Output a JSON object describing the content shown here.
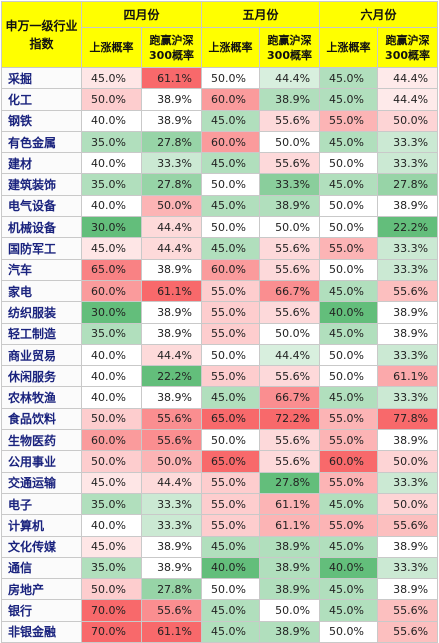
{
  "header": {
    "corner": "申万一级行业指数",
    "months": [
      "四月份",
      "五月份",
      "六月份"
    ],
    "col_rise": "上涨概率",
    "col_beat": "跑赢沪深300概率"
  },
  "rows": [
    {
      "name": "采掘",
      "v": [
        "45.0%",
        "61.1%",
        "50.0%",
        "44.4%",
        "45.0%",
        "44.4%"
      ]
    },
    {
      "name": "化工",
      "v": [
        "50.0%",
        "38.9%",
        "60.0%",
        "38.9%",
        "45.0%",
        "44.4%"
      ]
    },
    {
      "name": "钢铁",
      "v": [
        "40.0%",
        "38.9%",
        "45.0%",
        "55.6%",
        "55.0%",
        "50.0%"
      ]
    },
    {
      "name": "有色金属",
      "v": [
        "35.0%",
        "27.8%",
        "60.0%",
        "50.0%",
        "45.0%",
        "33.3%"
      ]
    },
    {
      "name": "建材",
      "v": [
        "40.0%",
        "33.3%",
        "45.0%",
        "55.6%",
        "50.0%",
        "33.3%"
      ]
    },
    {
      "name": "建筑装饰",
      "v": [
        "35.0%",
        "27.8%",
        "50.0%",
        "33.3%",
        "45.0%",
        "27.8%"
      ]
    },
    {
      "name": "电气设备",
      "v": [
        "40.0%",
        "50.0%",
        "45.0%",
        "38.9%",
        "50.0%",
        "38.9%"
      ]
    },
    {
      "name": "机械设备",
      "v": [
        "30.0%",
        "44.4%",
        "50.0%",
        "50.0%",
        "50.0%",
        "22.2%"
      ]
    },
    {
      "name": "国防军工",
      "v": [
        "45.0%",
        "44.4%",
        "45.0%",
        "55.6%",
        "55.0%",
        "33.3%"
      ]
    },
    {
      "name": "汽车",
      "v": [
        "65.0%",
        "38.9%",
        "60.0%",
        "55.6%",
        "50.0%",
        "33.3%"
      ]
    },
    {
      "name": "家电",
      "v": [
        "60.0%",
        "61.1%",
        "55.0%",
        "66.7%",
        "45.0%",
        "55.6%"
      ]
    },
    {
      "name": "纺织服装",
      "v": [
        "30.0%",
        "38.9%",
        "55.0%",
        "55.6%",
        "40.0%",
        "38.9%"
      ]
    },
    {
      "name": "轻工制造",
      "v": [
        "35.0%",
        "38.9%",
        "55.0%",
        "50.0%",
        "45.0%",
        "38.9%"
      ]
    },
    {
      "name": "商业贸易",
      "v": [
        "40.0%",
        "44.4%",
        "50.0%",
        "44.4%",
        "50.0%",
        "33.3%"
      ]
    },
    {
      "name": "休闲服务",
      "v": [
        "40.0%",
        "22.2%",
        "55.0%",
        "55.6%",
        "50.0%",
        "61.1%"
      ]
    },
    {
      "name": "农林牧渔",
      "v": [
        "40.0%",
        "38.9%",
        "45.0%",
        "66.7%",
        "45.0%",
        "33.3%"
      ]
    },
    {
      "name": "食品饮料",
      "v": [
        "50.0%",
        "55.6%",
        "65.0%",
        "72.2%",
        "55.0%",
        "77.8%"
      ]
    },
    {
      "name": "生物医药",
      "v": [
        "60.0%",
        "55.6%",
        "50.0%",
        "55.6%",
        "55.0%",
        "38.9%"
      ]
    },
    {
      "name": "公用事业",
      "v": [
        "50.0%",
        "50.0%",
        "65.0%",
        "55.6%",
        "60.0%",
        "50.0%"
      ]
    },
    {
      "name": "交通运输",
      "v": [
        "45.0%",
        "44.4%",
        "55.0%",
        "27.8%",
        "55.0%",
        "33.3%"
      ]
    },
    {
      "name": "电子",
      "v": [
        "35.0%",
        "33.3%",
        "55.0%",
        "61.1%",
        "45.0%",
        "50.0%"
      ]
    },
    {
      "name": "计算机",
      "v": [
        "40.0%",
        "33.3%",
        "55.0%",
        "61.1%",
        "55.0%",
        "55.6%"
      ]
    },
    {
      "name": "文化传媒",
      "v": [
        "45.0%",
        "38.9%",
        "45.0%",
        "38.9%",
        "45.0%",
        "38.9%"
      ]
    },
    {
      "name": "通信",
      "v": [
        "35.0%",
        "38.9%",
        "40.0%",
        "38.9%",
        "40.0%",
        "33.3%"
      ]
    },
    {
      "name": "房地产",
      "v": [
        "50.0%",
        "27.8%",
        "50.0%",
        "38.9%",
        "45.0%",
        "38.9%"
      ]
    },
    {
      "name": "银行",
      "v": [
        "70.0%",
        "55.6%",
        "45.0%",
        "50.0%",
        "45.0%",
        "55.6%"
      ]
    },
    {
      "name": "非银金融",
      "v": [
        "70.0%",
        "61.1%",
        "45.0%",
        "38.9%",
        "50.0%",
        "55.6%"
      ]
    }
  ],
  "colors": {
    "header_bg": "#ffff00",
    "low_green": "#63be7b",
    "mid": "#ffffff",
    "high_red": "#f8696b",
    "industry_text": "#1a237e"
  }
}
